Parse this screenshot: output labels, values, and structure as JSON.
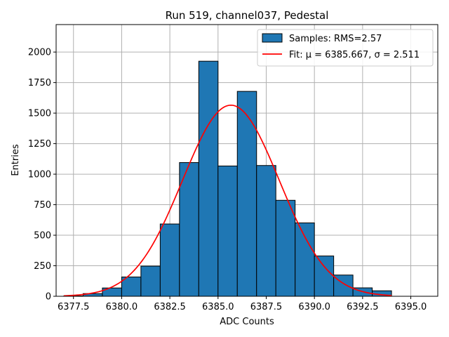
{
  "chart_data": {
    "type": "bar",
    "title": "Run 519, channel037, Pedestal",
    "xlabel": "ADC Counts",
    "ylabel": "Entries",
    "xlim": [
      6376.6,
      6396.4
    ],
    "ylim": [
      0,
      2225
    ],
    "grid": true,
    "legend_position": "top-right",
    "xticks": [
      6377.5,
      6380.0,
      6382.5,
      6385.0,
      6387.5,
      6390.0,
      6392.5,
      6395.0
    ],
    "xtick_labels": [
      "6377.5",
      "6380.0",
      "6382.5",
      "6385.0",
      "6387.5",
      "6390.0",
      "6392.5",
      "6395.0"
    ],
    "yticks": [
      0,
      250,
      500,
      750,
      1000,
      1250,
      1500,
      1750,
      2000
    ],
    "ytick_labels": [
      "0",
      "250",
      "500",
      "750",
      "1000",
      "1250",
      "1500",
      "1750",
      "2000"
    ],
    "histogram": {
      "name": "Samples: RMS=2.57",
      "color": "#1f77b4",
      "edgecolor": "#000000",
      "bins": [
        {
          "x0": 6377.0,
          "x1": 6378.0,
          "value": 3
        },
        {
          "x0": 6378.0,
          "x1": 6379.0,
          "value": 22
        },
        {
          "x0": 6379.0,
          "x1": 6380.0,
          "value": 68
        },
        {
          "x0": 6380.0,
          "x1": 6381.0,
          "value": 158
        },
        {
          "x0": 6381.0,
          "x1": 6382.0,
          "value": 247
        },
        {
          "x0": 6382.0,
          "x1": 6383.0,
          "value": 592
        },
        {
          "x0": 6383.0,
          "x1": 6384.0,
          "value": 1095
        },
        {
          "x0": 6384.0,
          "x1": 6385.0,
          "value": 1925
        },
        {
          "x0": 6385.0,
          "x1": 6386.0,
          "value": 1067
        },
        {
          "x0": 6386.0,
          "x1": 6387.0,
          "value": 1678
        },
        {
          "x0": 6387.0,
          "x1": 6388.0,
          "value": 1071
        },
        {
          "x0": 6388.0,
          "x1": 6389.0,
          "value": 786
        },
        {
          "x0": 6389.0,
          "x1": 6390.0,
          "value": 601
        },
        {
          "x0": 6390.0,
          "x1": 6391.0,
          "value": 330
        },
        {
          "x0": 6391.0,
          "x1": 6392.0,
          "value": 174
        },
        {
          "x0": 6392.0,
          "x1": 6393.0,
          "value": 69
        },
        {
          "x0": 6393.0,
          "x1": 6394.0,
          "value": 45
        }
      ]
    },
    "fit": {
      "name": "Fit: μ = 6385.667, σ = 2.511",
      "color": "#ff0000",
      "type": "gaussian",
      "mu": 6385.667,
      "sigma": 2.511,
      "amplitude": 1565,
      "x_range": [
        6377.0,
        6394.0
      ]
    }
  }
}
